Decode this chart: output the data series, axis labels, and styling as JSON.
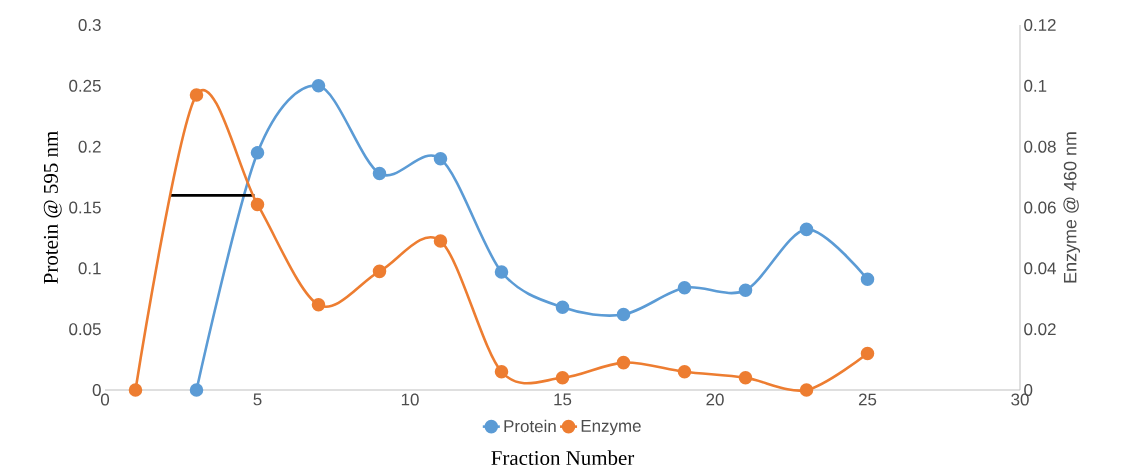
{
  "chart_data": {
    "type": "line",
    "xlabel": "Fraction Number",
    "ylabel": "Protein @ 595 nm",
    "y2label": "Enzyme @ 460 nm",
    "xlim": [
      0,
      30
    ],
    "xticks": [
      0,
      5,
      10,
      15,
      20,
      25,
      30
    ],
    "ylim": [
      0,
      0.3
    ],
    "yticks": [
      0,
      0.05,
      0.1,
      0.15,
      0.2,
      0.25,
      0.3
    ],
    "y2lim": [
      0,
      0.12
    ],
    "y2ticks": [
      0,
      0.02,
      0.04,
      0.06,
      0.08,
      0.1,
      0.12
    ],
    "grid": false,
    "legend": "bottom",
    "marker": "circle",
    "series": [
      {
        "name": "Protein",
        "color": "#5b9bd5",
        "x": [
          3,
          5,
          7,
          9,
          11,
          13,
          15,
          17,
          19,
          21,
          23,
          25
        ],
        "values": [
          0,
          0.195,
          0.25,
          0.178,
          0.19,
          0.097,
          0.068,
          0.062,
          0.084,
          0.082,
          0.132,
          0.091
        ]
      },
      {
        "name": "Enzyme",
        "color": "#ed7d31",
        "axis": "y2",
        "x": [
          1,
          3,
          5,
          7,
          9,
          11,
          13,
          15,
          17,
          19,
          21,
          23,
          25
        ],
        "values": [
          0,
          0.097,
          0.061,
          0.028,
          0.039,
          0.049,
          0.006,
          0.004,
          0.009,
          0.006,
          0.004,
          0,
          0.012
        ]
      },
      {
        "color": "#000000",
        "marker": "none",
        "x": [
          2.1,
          4.9
        ],
        "values": [
          0.16,
          0.16
        ]
      }
    ]
  }
}
